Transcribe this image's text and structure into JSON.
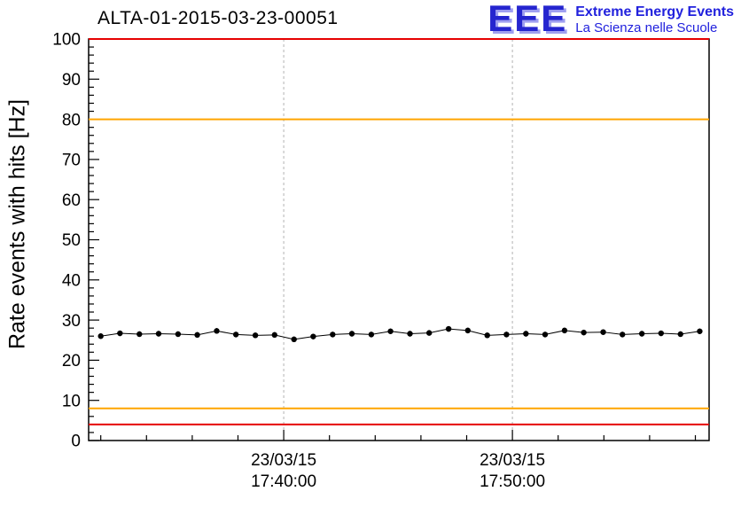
{
  "logo": {
    "acronym": "EEE",
    "line1": "Extreme Energy Events",
    "line2": "La Scienza nelle Scuole",
    "color": "#2121dd"
  },
  "chart_data": {
    "type": "line",
    "title": "ALTA-01-2015-03-23-00051",
    "ylabel": "Rate events with hits [Hz]",
    "ylim": [
      0,
      100
    ],
    "y_major_step": 10,
    "y_minor_step": 2,
    "x_units": "minutes relative to 23/03/15 17:40:00",
    "xlim_minutes": [
      -8.53,
      18.6
    ],
    "x_minor_step_min": 2,
    "x_ticks": [
      {
        "t": 0,
        "date": "23/03/15",
        "time": "17:40:00"
      },
      {
        "t": 10,
        "date": "23/03/15",
        "time": "17:50:00"
      }
    ],
    "grid_color": "#b3b3b3",
    "frame_color": "#000000",
    "reference_lines": [
      {
        "y": 100,
        "color": "#e60000"
      },
      {
        "y": 80,
        "color": "#ffa500"
      },
      {
        "y": 8,
        "color": "#ffa500"
      },
      {
        "y": 4,
        "color": "#e60000"
      }
    ],
    "series": [
      {
        "name": "rate-events-with-hits",
        "color": "#000000",
        "marker": "circle",
        "marker_radius": 3.2,
        "yerr": 0.7,
        "points": [
          [
            -8.0,
            26.0
          ],
          [
            -7.16,
            26.7
          ],
          [
            -6.31,
            26.5
          ],
          [
            -5.47,
            26.6
          ],
          [
            -4.62,
            26.5
          ],
          [
            -3.78,
            26.3
          ],
          [
            -2.93,
            27.3
          ],
          [
            -2.09,
            26.4
          ],
          [
            -1.24,
            26.2
          ],
          [
            -0.4,
            26.3
          ],
          [
            0.45,
            25.2
          ],
          [
            1.29,
            25.9
          ],
          [
            2.14,
            26.4
          ],
          [
            2.98,
            26.6
          ],
          [
            3.83,
            26.4
          ],
          [
            4.67,
            27.2
          ],
          [
            5.52,
            26.6
          ],
          [
            6.36,
            26.8
          ],
          [
            7.21,
            27.8
          ],
          [
            8.05,
            27.4
          ],
          [
            8.9,
            26.2
          ],
          [
            9.74,
            26.4
          ],
          [
            10.59,
            26.6
          ],
          [
            11.43,
            26.4
          ],
          [
            12.28,
            27.4
          ],
          [
            13.12,
            26.9
          ],
          [
            13.97,
            27.0
          ],
          [
            14.81,
            26.4
          ],
          [
            15.66,
            26.6
          ],
          [
            16.5,
            26.7
          ],
          [
            17.35,
            26.5
          ],
          [
            18.19,
            27.2
          ]
        ]
      }
    ]
  }
}
